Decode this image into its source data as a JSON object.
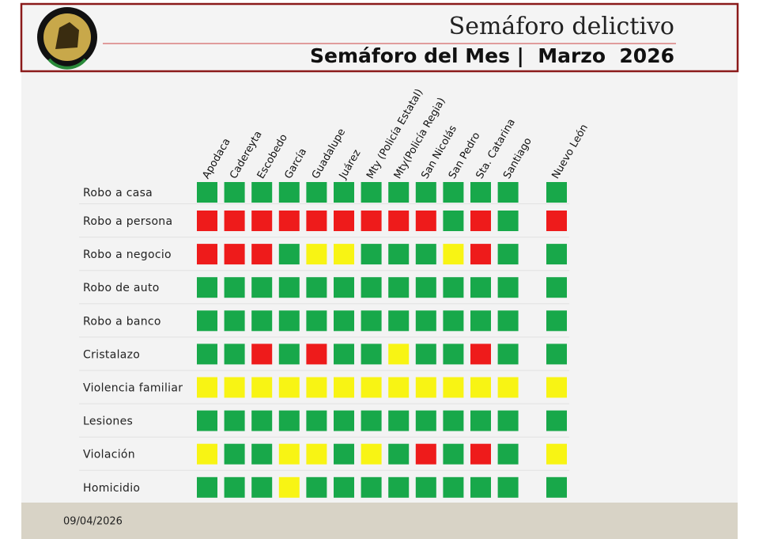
{
  "header": {
    "title": "Semáforo delictivo",
    "subtitle": "Semáforo del Mes |  Marzo  2026"
  },
  "columns": [
    "Apodaca",
    "Cadereyta",
    "Escobedo",
    "García",
    "Guadalupe",
    "Juárez",
    "Mty (Policía Estatal)",
    "Mty(Policía Regia)",
    "San Nicolás",
    "San Pedro",
    "Sta. Catarina",
    "Santiago",
    "Nuevo León"
  ],
  "rows": [
    {
      "label": "Robo a casa",
      "cells": [
        "green",
        "green",
        "green",
        "green",
        "green",
        "green",
        "green",
        "green",
        "green",
        "green",
        "green",
        "green",
        "green"
      ]
    },
    {
      "label": "Robo a persona",
      "cells": [
        "red",
        "red",
        "red",
        "red",
        "red",
        "red",
        "red",
        "red",
        "red",
        "green",
        "red",
        "green",
        "red"
      ]
    },
    {
      "label": "Robo a negocio",
      "cells": [
        "red",
        "red",
        "red",
        "green",
        "yellow",
        "yellow",
        "green",
        "green",
        "green",
        "yellow",
        "red",
        "green",
        "green"
      ]
    },
    {
      "label": "Robo de auto",
      "cells": [
        "green",
        "green",
        "green",
        "green",
        "green",
        "green",
        "green",
        "green",
        "green",
        "green",
        "green",
        "green",
        "green"
      ]
    },
    {
      "label": "Robo a banco",
      "cells": [
        "green",
        "green",
        "green",
        "green",
        "green",
        "green",
        "green",
        "green",
        "green",
        "green",
        "green",
        "green",
        "green"
      ]
    },
    {
      "label": "Cristalazo",
      "cells": [
        "green",
        "green",
        "red",
        "green",
        "red",
        "green",
        "green",
        "yellow",
        "green",
        "green",
        "red",
        "green",
        "green"
      ]
    },
    {
      "label": "Violencia familiar",
      "cells": [
        "yellow",
        "yellow",
        "yellow",
        "yellow",
        "yellow",
        "yellow",
        "yellow",
        "yellow",
        "yellow",
        "yellow",
        "yellow",
        "yellow",
        "yellow"
      ]
    },
    {
      "label": "Lesiones",
      "cells": [
        "green",
        "green",
        "green",
        "green",
        "green",
        "green",
        "green",
        "green",
        "green",
        "green",
        "green",
        "green",
        "green"
      ]
    },
    {
      "label": "Violación",
      "cells": [
        "yellow",
        "green",
        "green",
        "yellow",
        "yellow",
        "green",
        "yellow",
        "green",
        "red",
        "green",
        "red",
        "green",
        "yellow"
      ]
    },
    {
      "label": "Homicidio",
      "cells": [
        "green",
        "green",
        "green",
        "yellow",
        "green",
        "green",
        "green",
        "green",
        "green",
        "green",
        "green",
        "green",
        "green"
      ]
    }
  ],
  "footer": {
    "date": "09/04/2026"
  },
  "colors": {
    "green": "#18a84a",
    "red": "#ee1b1b",
    "yellow": "#f8f414"
  }
}
